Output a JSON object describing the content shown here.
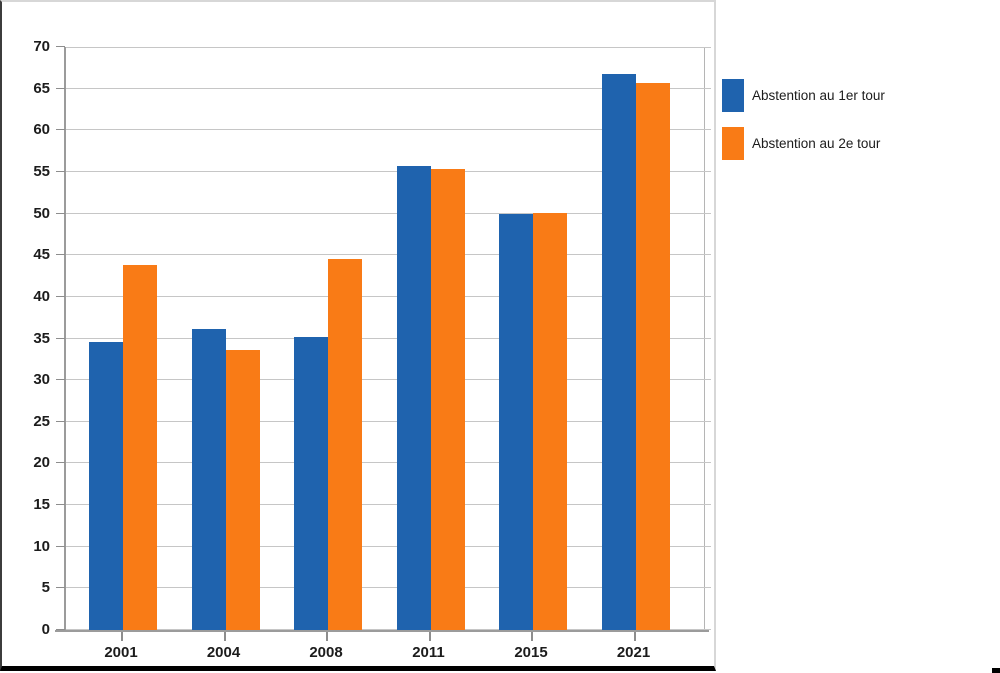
{
  "chart_data": {
    "type": "bar",
    "title": "",
    "xlabel": "",
    "ylabel": "",
    "categories": [
      "2001",
      "2004",
      "2008",
      "2011",
      "2015",
      "2021"
    ],
    "series": [
      {
        "name": "Abstention au 1er tour",
        "color": "#1f63ae",
        "values": [
          34.6,
          36.1,
          35.2,
          55.7,
          49.9,
          66.7
        ]
      },
      {
        "name": "Abstention au 2e tour",
        "color": "#f97b16",
        "values": [
          43.8,
          33.6,
          44.6,
          55.4,
          50.1,
          65.7
        ]
      }
    ],
    "ylim": [
      0,
      70
    ],
    "ytick_step": 5,
    "grid": true,
    "legend_position": "right-outside"
  },
  "colors": {
    "gridline": "#c6c6c6",
    "axis": "#9b9b9b",
    "label": "#1c1c1c",
    "series_blue": "#1f63ae",
    "series_orange": "#f97b16",
    "panel_bottom_border": "#000000"
  }
}
